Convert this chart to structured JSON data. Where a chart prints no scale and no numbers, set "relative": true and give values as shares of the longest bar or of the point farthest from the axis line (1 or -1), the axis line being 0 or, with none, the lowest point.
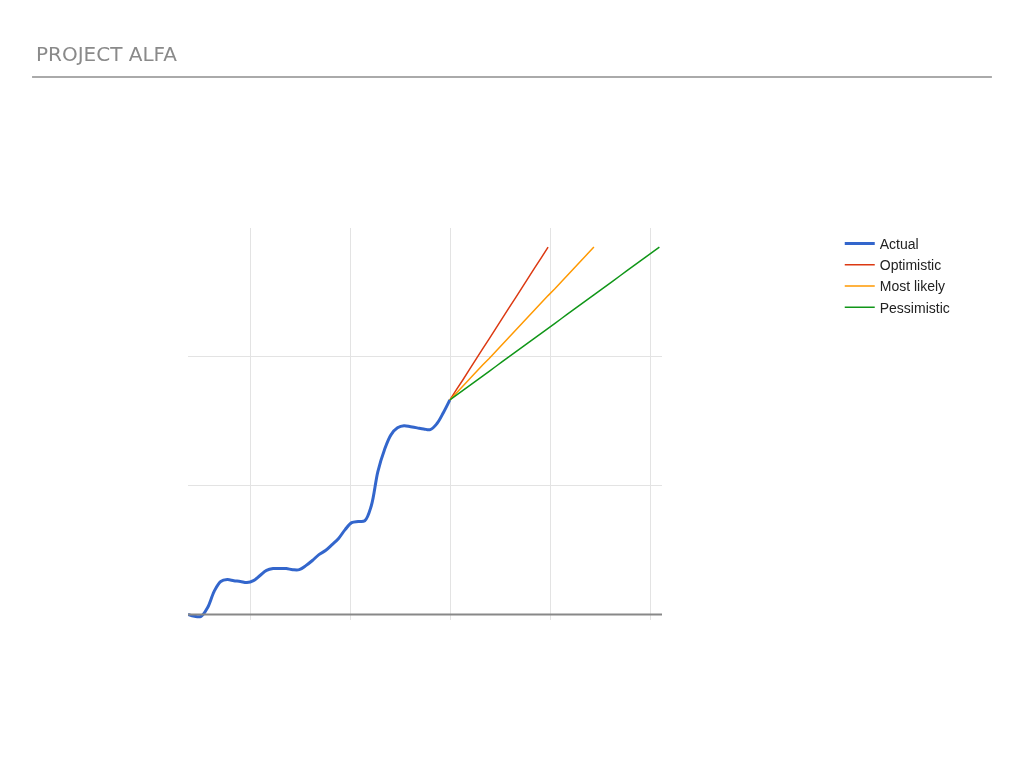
{
  "chart_data": {
    "type": "line",
    "title": "PROJECT ALFA",
    "relative": true,
    "grid": true,
    "legend": "top right",
    "tick_labels": false,
    "categories": [
      null,
      null,
      null,
      null,
      null,
      null,
      null,
      null,
      null,
      null,
      null,
      null,
      null,
      null,
      null,
      null,
      null,
      null,
      null,
      null,
      null,
      null,
      null,
      null,
      null,
      null,
      null,
      null,
      null,
      null,
      null,
      null,
      null,
      null,
      null,
      null,
      null,
      null,
      null,
      null,
      null,
      null,
      null,
      null,
      null,
      null,
      null,
      null,
      null,
      null,
      null,
      null,
      null,
      null,
      null,
      null,
      null,
      null,
      null,
      null,
      null,
      null,
      null,
      null,
      null,
      null,
      null,
      null,
      null,
      null,
      null,
      null,
      null
    ],
    "series": [
      {
        "name": "Actual",
        "color": "#3366cc",
        "values": [
          0,
          -0.005,
          -0.005,
          0.019,
          0.063,
          0.09,
          0.095,
          0.092,
          0.09,
          0.087,
          0.092,
          0.106,
          0.12,
          0.125,
          0.125,
          0.125,
          0.122,
          0.122,
          0.133,
          0.147,
          0.163,
          0.174,
          0.19,
          0.207,
          0.231,
          0.25,
          0.253,
          0.255,
          0.296,
          0.389,
          0.448,
          0.489,
          0.508,
          0.514,
          0.511,
          0.508,
          0.505,
          0.503,
          0.519,
          0.549,
          0.584,
          null,
          null,
          null,
          null,
          null,
          null,
          null,
          null,
          null,
          null,
          null,
          null,
          null,
          null,
          null,
          null,
          null,
          null,
          null,
          null,
          null,
          null,
          null,
          null,
          null,
          null,
          null,
          null,
          null,
          null,
          null,
          null
        ]
      },
      {
        "name": "Optimistic",
        "color": "#dc3912",
        "values": [
          null,
          null,
          null,
          null,
          null,
          null,
          null,
          null,
          null,
          null,
          null,
          null,
          null,
          null,
          null,
          null,
          null,
          null,
          null,
          null,
          null,
          null,
          null,
          null,
          null,
          null,
          null,
          null,
          null,
          null,
          null,
          null,
          null,
          null,
          null,
          null,
          null,
          null,
          null,
          null,
          0.584,
          0.612,
          0.639,
          0.667,
          0.695,
          0.723,
          0.75,
          0.778,
          0.806,
          0.834,
          0.861,
          0.889,
          0.917,
          0.945,
          0.972,
          1,
          null,
          null,
          null,
          null,
          null,
          null,
          null,
          null,
          null,
          null,
          null,
          null,
          null,
          null,
          null,
          null,
          null
        ]
      },
      {
        "name": "Most likely",
        "color": "#ff9900",
        "values": [
          null,
          null,
          null,
          null,
          null,
          null,
          null,
          null,
          null,
          null,
          null,
          null,
          null,
          null,
          null,
          null,
          null,
          null,
          null,
          null,
          null,
          null,
          null,
          null,
          null,
          null,
          null,
          null,
          null,
          null,
          null,
          null,
          null,
          null,
          null,
          null,
          null,
          null,
          null,
          null,
          0.584,
          0.603,
          0.622,
          0.641,
          0.66,
          0.679,
          0.697,
          0.716,
          0.735,
          0.754,
          0.773,
          0.792,
          0.811,
          0.83,
          0.849,
          0.868,
          0.886,
          0.905,
          0.924,
          0.943,
          0.962,
          0.981,
          1,
          null,
          null,
          null,
          null,
          null,
          null,
          null,
          null,
          null,
          null
        ]
      },
      {
        "name": "Pessimistic",
        "color": "#109618",
        "values": [
          null,
          null,
          null,
          null,
          null,
          null,
          null,
          null,
          null,
          null,
          null,
          null,
          null,
          null,
          null,
          null,
          null,
          null,
          null,
          null,
          null,
          null,
          null,
          null,
          null,
          null,
          null,
          null,
          null,
          null,
          null,
          null,
          null,
          null,
          null,
          null,
          null,
          null,
          null,
          null,
          0.584,
          0.597,
          0.61,
          0.623,
          0.636,
          0.649,
          0.662,
          0.675,
          0.688,
          0.701,
          0.714,
          0.727,
          0.74,
          0.753,
          0.766,
          0.779,
          0.792,
          0.805,
          0.818,
          0.831,
          0.844,
          0.857,
          0.87,
          0.883,
          0.896,
          0.909,
          0.922,
          0.935,
          0.948,
          0.961,
          0.974,
          0.987,
          1
        ]
      }
    ]
  }
}
